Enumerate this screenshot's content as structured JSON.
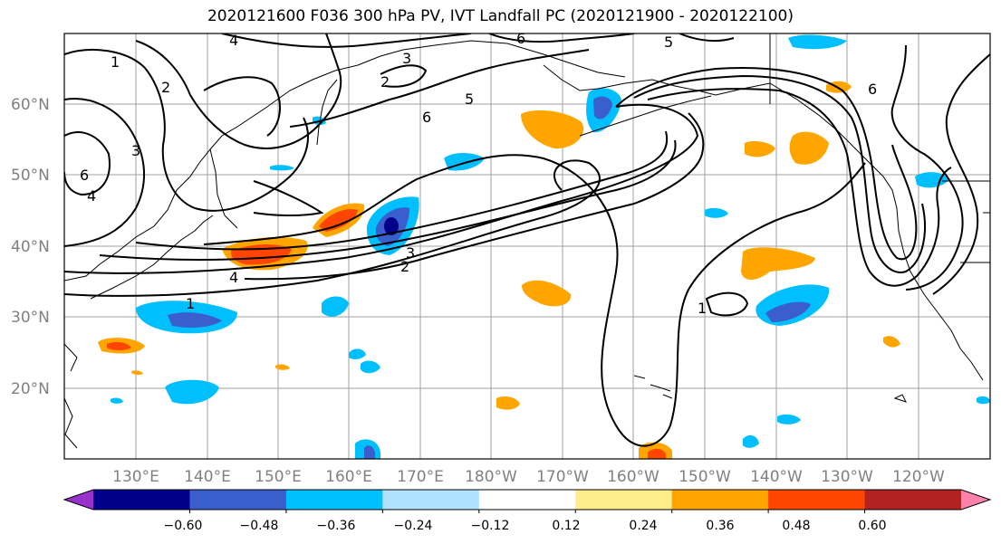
{
  "title": "2020121600 F036 300 hPa PV, IVT Landfall PC (2020121900 - 2020122100)",
  "map": {
    "lat_labels": [
      "60°N",
      "50°N",
      "40°N",
      "30°N",
      "20°N"
    ],
    "lon_labels": [
      "130°E",
      "140°E",
      "150°E",
      "160°E",
      "170°E",
      "180°W",
      "170°W",
      "160°W",
      "150°W",
      "140°W",
      "130°W",
      "120°W"
    ],
    "contour_labels": [
      "1",
      "2",
      "3",
      "4",
      "4",
      "5",
      "5",
      "6",
      "6",
      "6",
      "6",
      "1",
      "2",
      "3",
      "4",
      "1",
      "2",
      "3"
    ]
  },
  "colorbar": {
    "ticks": [
      "−0.60",
      "−0.48",
      "−0.36",
      "−0.24",
      "−0.12",
      "0.12",
      "0.24",
      "0.36",
      "0.48",
      "0.60"
    ],
    "colors": [
      "#9932cc",
      "#00008b",
      "#3a5fcd",
      "#00bfff",
      "#b0e2ff",
      "#ffffff",
      "#ffec8b",
      "#ffa500",
      "#ff4500",
      "#b22222",
      "#ff82ab"
    ]
  },
  "colors": {
    "land_outline": "#000000",
    "grid": "#a0a0a0",
    "contour": "#000000"
  }
}
